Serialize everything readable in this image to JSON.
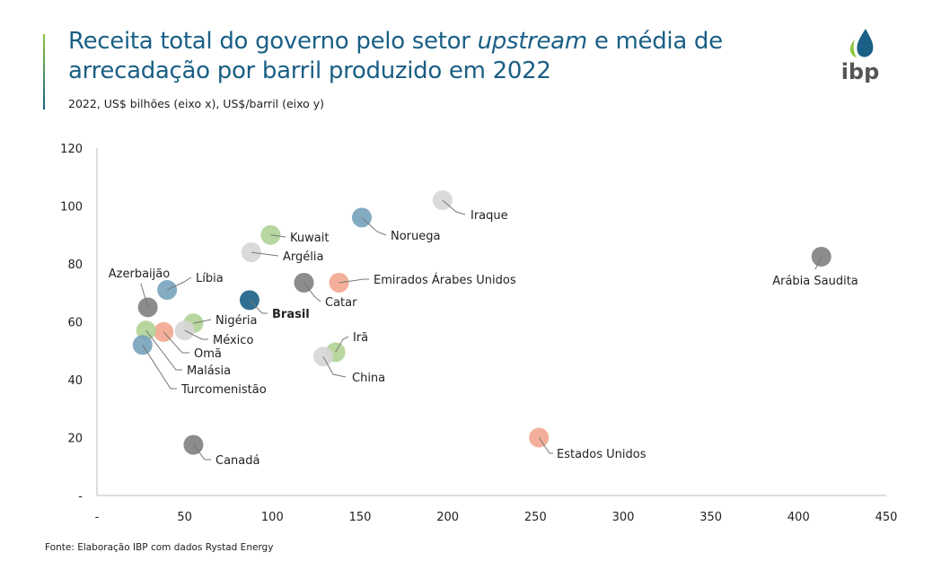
{
  "header": {
    "title_part1": "Receita total do governo pelo setor ",
    "title_italic": "upstream",
    "title_part2": " e média de",
    "title_line2": "arrecadação por barril produzido em 2022",
    "subtitle": "2022, US$ bilhões (eixo x), US$/barril (eixo y)"
  },
  "logo": {
    "text": "ibp"
  },
  "footer": {
    "source": "Fonte: Elaboração IBP com dados Rystad Energy"
  },
  "chart_data": {
    "type": "scatter",
    "title": "",
    "xlabel": "",
    "ylabel": "",
    "xlim": [
      0,
      450
    ],
    "ylim": [
      0,
      120
    ],
    "x_ticks": [
      "-",
      "50",
      "100",
      "150",
      "200",
      "250",
      "300",
      "350",
      "400",
      "450"
    ],
    "y_ticks": [
      "-",
      "20",
      "40",
      "60",
      "80",
      "100",
      "120"
    ],
    "grid": false,
    "colors": {
      "gray": "#7f7f7f",
      "lightgray": "#d6d6d6",
      "green": "#b0d396",
      "blue": "#76a3bd",
      "pink": "#f2a68e",
      "brasil": "#1a5f85"
    },
    "points": [
      {
        "label": "Iraque",
        "x": 197,
        "y": 102,
        "color": "lightgray"
      },
      {
        "label": "Noruega",
        "x": 151,
        "y": 96,
        "color": "blue"
      },
      {
        "label": "Kuwait",
        "x": 99,
        "y": 90,
        "color": "green"
      },
      {
        "label": "Argélia",
        "x": 88,
        "y": 84,
        "color": "lightgray"
      },
      {
        "label": "Arábia Saudita",
        "x": 413,
        "y": 82.5,
        "color": "gray"
      },
      {
        "label": "Emirados Árabes Unidos",
        "x": 138,
        "y": 73.5,
        "color": "pink"
      },
      {
        "label": "Catar",
        "x": 118,
        "y": 73.5,
        "color": "gray"
      },
      {
        "label": "Líbia",
        "x": 40,
        "y": 71,
        "color": "blue"
      },
      {
        "label": "Azerbaijão",
        "x": 29,
        "y": 65,
        "color": "gray"
      },
      {
        "label": "Brasil",
        "x": 87,
        "y": 67.5,
        "color": "brasil",
        "bold": true
      },
      {
        "label": "Nigéria",
        "x": 55,
        "y": 59.5,
        "color": "green"
      },
      {
        "label": "México",
        "x": 50,
        "y": 57,
        "color": "lightgray"
      },
      {
        "label": "Omã",
        "x": 38,
        "y": 56.5,
        "color": "pink"
      },
      {
        "label": "Malásia",
        "x": 28,
        "y": 57,
        "color": "green"
      },
      {
        "label": "Turcomenistão",
        "x": 26,
        "y": 52,
        "color": "blue"
      },
      {
        "label": "Irã",
        "x": 136,
        "y": 49.5,
        "color": "green"
      },
      {
        "label": "China",
        "x": 129,
        "y": 48,
        "color": "lightgray"
      },
      {
        "label": "Canadá",
        "x": 55,
        "y": 17.5,
        "color": "gray"
      },
      {
        "label": "Estados Unidos",
        "x": 252,
        "y": 20,
        "color": "pink"
      }
    ]
  }
}
